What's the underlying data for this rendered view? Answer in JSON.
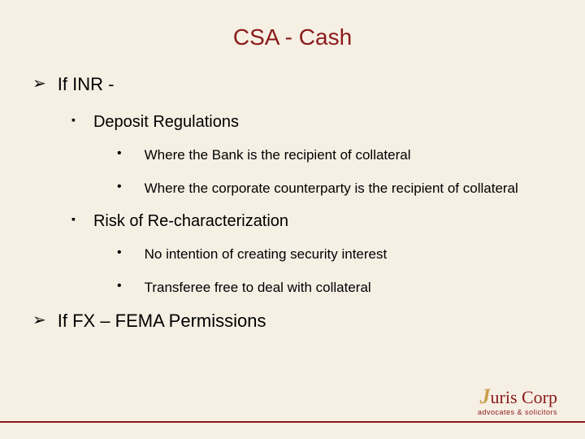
{
  "colors": {
    "title": "#8a1a1a",
    "text": "#000000",
    "background": "#f6efe4",
    "footer_line": "#8a1a1a",
    "logo_main": "#8a1a1a",
    "logo_accent": "#c9a04a"
  },
  "typography": {
    "title_fontsize": 28,
    "lvl1_fontsize": 22,
    "lvl2_fontsize": 20,
    "lvl3_fontsize": 17,
    "font_family": "Arial"
  },
  "title": "CSA - Cash",
  "bullets": {
    "lvl1_glyph": "➢",
    "lvl2_glyph": "▪",
    "lvl3_glyph": "•"
  },
  "content": {
    "item1": {
      "text": "If INR -",
      "sub1": {
        "text": "Deposit Regulations",
        "p1": "Where the Bank is the recipient of collateral",
        "p2": "Where the corporate counterparty is the recipient of collateral"
      },
      "sub2": {
        "text": "Risk of Re-characterization",
        "p1": "No intention of creating security interest",
        "p2": "Transferee free to deal with collateral"
      }
    },
    "item2": {
      "text": "If FX – FEMA Permissions"
    }
  },
  "logo": {
    "accent_letter": "J",
    "main": "uris ",
    "main2": "Corp",
    "tagline": "advocates & solicitors"
  }
}
